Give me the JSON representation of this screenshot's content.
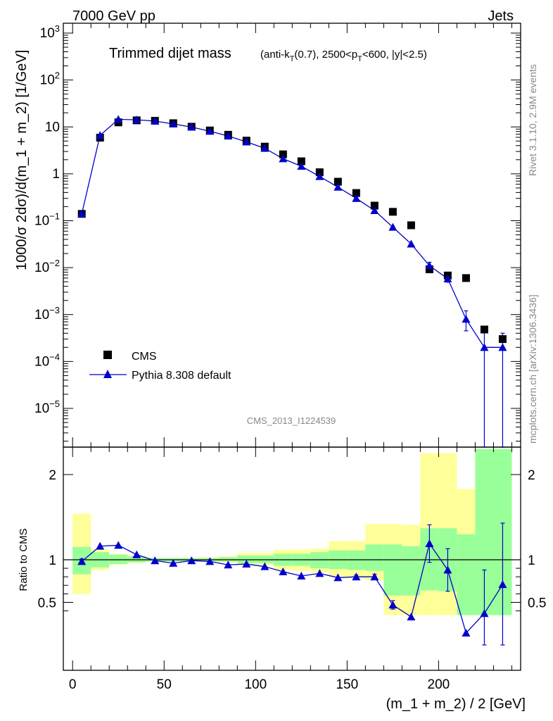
{
  "header": {
    "beam": "7000 GeV pp",
    "process": "Jets",
    "side_label_top": "Rivet 3.1.10,  2.9M events",
    "side_label_bottom": "mcplots.cern.ch [arXiv:1306.3436]",
    "analysis_id": "CMS_2013_I1224539"
  },
  "chart_data": [
    {
      "type": "scatter",
      "panel": "main",
      "title": "Trimmed dijet mass",
      "subtitle_parts": [
        "(anti-k",
        "T",
        "(0.7), 2500<p",
        "T",
        "<600, |y|<2.5)"
      ],
      "ylabel": "1000/σ 2dσ)/d(m_1 + m_2) [1/GeV]",
      "yscale": "log",
      "ylim": [
        2e-06,
        1300
      ],
      "xlim": [
        -4,
        242
      ],
      "ytick_labels": [
        {
          "base": "10",
          "exp": "3"
        },
        {
          "base": "10",
          "exp": "2"
        },
        {
          "base": "10",
          "exp": ""
        },
        {
          "base": "1",
          "exp": ""
        },
        {
          "base": "10",
          "exp": "−1"
        },
        {
          "base": "10",
          "exp": "−2"
        },
        {
          "base": "10",
          "exp": "−3"
        },
        {
          "base": "10",
          "exp": "−4"
        },
        {
          "base": "10",
          "exp": "−5"
        }
      ],
      "ytick_values": [
        1000,
        100,
        10,
        1,
        0.1,
        0.01,
        0.001,
        0.0001,
        1e-05
      ],
      "legend_position": "bottom-left",
      "series": [
        {
          "name": "CMS",
          "marker": "square",
          "color": "#000000",
          "x": [
            5,
            15,
            25,
            35,
            45,
            55,
            65,
            75,
            85,
            95,
            105,
            115,
            125,
            135,
            145,
            155,
            165,
            175,
            185,
            195,
            205,
            215,
            225,
            235
          ],
          "y": [
            0.14,
            5.9,
            12.5,
            13.8,
            13.5,
            12.0,
            10.1,
            8.4,
            6.8,
            5.1,
            3.8,
            2.6,
            1.85,
            1.08,
            0.68,
            0.39,
            0.21,
            0.155,
            0.08,
            0.0092,
            0.0068,
            0.006,
            0.00048,
            0.0003
          ]
        },
        {
          "name": "Pythia 8.308 default",
          "marker": "triangle",
          "color": "#0000cc",
          "x": [
            5,
            15,
            25,
            35,
            45,
            55,
            65,
            75,
            85,
            95,
            105,
            115,
            125,
            135,
            145,
            155,
            165,
            175,
            185,
            195,
            205,
            215,
            225,
            235
          ],
          "y": [
            0.14,
            6.6,
            14.5,
            14.2,
            13.3,
            11.6,
            9.9,
            8.1,
            6.4,
            4.8,
            3.5,
            2.1,
            1.45,
            0.88,
            0.52,
            0.3,
            0.165,
            0.073,
            0.032,
            0.011,
            0.0058,
            0.0008,
            0.0002,
            0.0002
          ],
          "yerr_low": [
            0,
            0,
            0,
            0,
            0,
            0,
            0,
            0,
            0,
            0,
            0,
            0,
            0,
            0,
            0,
            0,
            0,
            0,
            0,
            0.002,
            0.0009,
            0.00035,
            0.000199,
            0.000199
          ],
          "yerr_high": [
            0,
            0,
            0,
            0,
            0,
            0,
            0,
            0,
            0,
            0,
            0,
            0,
            0,
            0,
            0,
            0,
            0,
            0,
            0,
            0.002,
            0.0009,
            0.0004,
            0.0003,
            0.0002
          ]
        }
      ]
    },
    {
      "type": "line",
      "panel": "ratio",
      "ylabel": "Ratio to CMS",
      "xlabel": "(m_1 + m_2) / 2 [GeV]",
      "xlim": [
        -4,
        242
      ],
      "ylim": [
        0.35,
        2.3
      ],
      "xtick_labels": [
        "0",
        "50",
        "100",
        "150",
        "200"
      ],
      "xtick_values": [
        0,
        50,
        100,
        150,
        200
      ],
      "ytick_labels": [
        "2",
        "1",
        "0.5"
      ],
      "ytick_values": [
        2,
        1,
        0.5
      ],
      "bin_edges": [
        0,
        10,
        20,
        30,
        40,
        50,
        60,
        70,
        80,
        90,
        100,
        110,
        120,
        130,
        140,
        150,
        160,
        170,
        180,
        190,
        200,
        210,
        220,
        230,
        240
      ],
      "band_colors": {
        "stat": "#99ff99",
        "total": "#ffff99"
      },
      "band_stat": {
        "low": [
          0.83,
          0.91,
          0.95,
          0.97,
          0.98,
          0.98,
          0.98,
          0.98,
          0.98,
          0.96,
          0.96,
          0.93,
          0.93,
          0.9,
          0.89,
          0.88,
          0.87,
          0.58,
          0.58,
          0.64,
          0.63,
          0.35,
          0.35,
          0.35
        ],
        "high": [
          1.15,
          1.09,
          1.06,
          1.04,
          1.02,
          1.02,
          1.02,
          1.02,
          1.03,
          1.05,
          1.05,
          1.07,
          1.07,
          1.09,
          1.11,
          1.11,
          1.18,
          1.18,
          1.16,
          1.37,
          1.37,
          1.3,
          2.3,
          2.3
        ]
      },
      "band_total": {
        "low": [
          0.6,
          0.88,
          0.94,
          0.96,
          0.98,
          0.98,
          0.98,
          0.98,
          0.97,
          0.94,
          0.94,
          0.88,
          0.87,
          0.85,
          0.8,
          0.78,
          0.76,
          0.35,
          0.35,
          0.35,
          0.35,
          0.35,
          0.35,
          0.35
        ],
        "high": [
          1.54,
          1.12,
          1.07,
          1.05,
          1.02,
          1.02,
          1.02,
          1.03,
          1.04,
          1.08,
          1.08,
          1.12,
          1.12,
          1.13,
          1.22,
          1.22,
          1.42,
          1.42,
          1.41,
          2.25,
          2.25,
          1.83,
          2.3,
          2.3
        ]
      },
      "series": [
        {
          "name": "Pythia 8.308 default",
          "color": "#0000cc",
          "x": [
            5,
            15,
            25,
            35,
            45,
            55,
            65,
            75,
            85,
            95,
            105,
            115,
            125,
            135,
            145,
            155,
            165,
            175,
            185,
            195,
            205,
            215,
            225,
            235
          ],
          "y": [
            0.98,
            1.16,
            1.17,
            1.06,
            0.99,
            0.96,
            0.99,
            0.98,
            0.94,
            0.95,
            0.92,
            0.86,
            0.81,
            0.84,
            0.79,
            0.8,
            0.8,
            0.47,
            0.33,
            1.19,
            0.88,
            0.14,
            0.37,
            0.71
          ],
          "yerr_low": [
            0.03,
            0,
            0,
            0,
            0,
            0,
            0,
            0,
            0,
            0,
            0,
            0,
            0,
            0,
            0,
            0.02,
            0.03,
            0.05,
            0,
            0.22,
            0.25,
            0,
            0.37,
            0.71
          ],
          "yerr_high": [
            0.03,
            0,
            0,
            0,
            0,
            0,
            0,
            0,
            0,
            0,
            0,
            0,
            0,
            0,
            0,
            0.02,
            0.03,
            0.05,
            0,
            0.22,
            0.25,
            0,
            0.51,
            0.72
          ]
        }
      ]
    }
  ]
}
